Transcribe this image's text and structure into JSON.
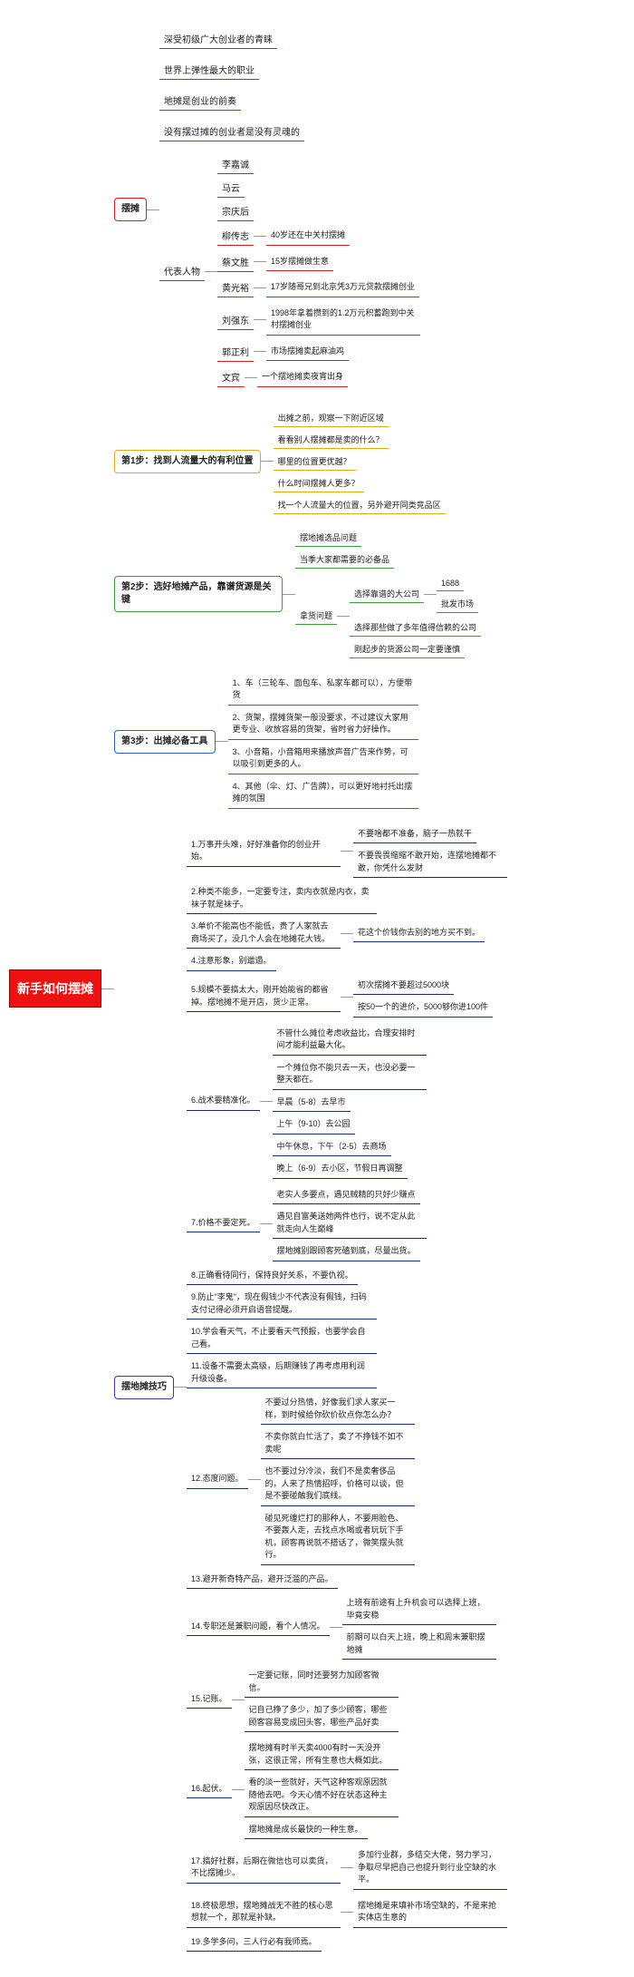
{
  "root": "新手如何摆摊",
  "colors": {
    "red": "#d81e1e",
    "orange": "#e6a817",
    "green": "#3a9e3a",
    "blue": "#2a5fd8",
    "purple": "#4a2fb0",
    "navy": "#1a2a6e"
  },
  "s1": {
    "title": "摆摊",
    "intro": [
      "深受初级广大创业者的青睐",
      "世界上弹性最大的职业",
      "地摊是创业的前奏",
      "没有摆过摊的创业者是没有灵魂的"
    ],
    "repTitle": "代表人物",
    "reps": [
      {
        "n": "李嘉诚"
      },
      {
        "n": "马云"
      },
      {
        "n": "宗庆后"
      },
      {
        "n": "柳传志",
        "d": "40岁还在中关村摆摊"
      },
      {
        "n": "蔡文胜",
        "d": "15岁摆摊做生意"
      },
      {
        "n": "黄光裕",
        "d": "17岁随哥兄到北京凭3万元贷款摆摊创业"
      },
      {
        "n": "刘强东",
        "d": "1998年拿着攒到的1.2万元积蓄跑到中关村摆摊创业"
      },
      {
        "n": "郭正利",
        "d": "市场摆摊卖起麻油鸡"
      },
      {
        "n": "文宾",
        "d": "一个摆地摊卖夜宵出身"
      }
    ]
  },
  "s2": {
    "title": "第1步：找到人流量大的有利位置",
    "items": [
      "出摊之前，观察一下附近区域",
      "看看别人摆摊都是卖的什么？",
      "哪里的位置更优越？",
      "什么时间摆摊人更多？",
      "找一个人流量大的位置，另外避开同类竞品区"
    ]
  },
  "s3": {
    "title": "第2步：选好地摊产品，靠谱货源是关键",
    "a": [
      "摆地摊选品问题",
      "当季大家都需要的必备品"
    ],
    "b": "拿货问题",
    "b1": "选择靠谱的大公司",
    "b1a": "1688",
    "b1b": "批发市场",
    "b2": "选择那些做了多年值得信赖的公司",
    "b3": "刚起步的货源公司一定要谨慎"
  },
  "s4": {
    "title": "第3步：出摊必备工具",
    "items": [
      "1、车（三轮车、面包车、私家车都可以），方便带货",
      "2、货架，摆摊货架一般没要求，不过建议大家用更专业、收放容易的货架，省时省力好操作。",
      "3、小音箱，小音箱用来播放声音广告来作势，可以吸引到更多的人。",
      "4、其他（伞、灯、广告牌），可以更好地衬托出摆摊的氛围"
    ]
  },
  "s5": {
    "title": "摆地摊技巧",
    "t": [
      {
        "n": "1.万事开头难，好好准备你的创业开始。",
        "c": [
          "不要啥都不准备，脑子一热就干",
          "不要畏畏缩缩不敢开始，连摆地摊都不敢，你凭什么发财"
        ]
      },
      {
        "n": "2.种类不能多，一定要专注，卖内衣就是内衣，卖袜子就是袜子。"
      },
      {
        "n": "3.单价不能高也不能低，贵了人家就去商场买了，没几个人会在地摊花大钱。",
        "c": [
          "花这个价钱你去别的地方买不到。"
        ]
      },
      {
        "n": "4.注意形象，别邋遢。"
      },
      {
        "n": "5.规模不要搞太大，刚开始能省的都省掉。摆地摊不是开店，货少正常。",
        "c": [
          "初次摆摊不要超过5000块",
          "按50一个的进价，5000够你进100件"
        ]
      },
      {
        "n": "6.战术要精准化。",
        "c": [
          "不管什么摊位考虑收益比，合理安排时间才能利益最大化。",
          "一个摊位你不能只去一天，也没必要一整天都在。",
          "早晨（5-8）去早市",
          "上午（9-10）去公园",
          "中午休息，下午（2-5）去商场",
          "晚上（6-9）去小区，节假日再调整"
        ]
      },
      {
        "n": "7.价格不要定死。",
        "c": [
          "老实人多要点，遇见贼精的只好少赚点",
          "遇见自富美送她两件也行，说不定从此就走向人生巅峰",
          "摆地摊别跟顾客死磕到底，尽量出货。"
        ]
      },
      {
        "n": "8.正确看待同行，保持良好关系，不要仇视。"
      },
      {
        "n": "9.防止\"李鬼\"，现在假钱少不代表没有假钱，扫码支付记得必须开启语音提醒。"
      },
      {
        "n": "10.学会看天气，不止要看天气预报，也要学会自己看。"
      },
      {
        "n": "11.设备不需要太高级，后期赚钱了再考虑用利润升级设备。"
      },
      {
        "n": "12.态度问题。",
        "c": [
          "不要过分热情，好像我们求人家买一样，到时候给你砍价砍点你怎么办？",
          "不卖你就白忙活了，卖了不挣钱不如不卖呢",
          "也不要过分冷淡，我们不是卖奢侈品的，人来了热情招呼，价格可以谈，但是不要碰触我们底线。",
          "碰见死缠烂打的那种人，不要用脸色、不要轰人走，去找点水喝或者玩玩下手机，顾客再说就不搭话了，微笑摆头就行。"
        ]
      },
      {
        "n": "13.避开新奇特产品，避开泛滥的产品。"
      },
      {
        "n": "14.专职还是兼职问题，看个人情况。",
        "c": [
          "上班有前途有上升机会可以选择上班，毕竟安稳",
          "前期可以白天上班，晚上和周末兼职摆地摊"
        ]
      },
      {
        "n": "15.记账。",
        "c": [
          "一定要记账，同时还要努力加顾客微信。",
          "记自己挣了多少，加了多少顾客，哪些顾客容易变成回头客，哪些产品好卖"
        ]
      },
      {
        "n": "16.起伏。",
        "c": [
          "摆地摊有时半天卖4000有时一天没开张，这很正常，所有生意也大概如此。",
          "看的淡一些就好，天气这种客观原因就随他去吧。今天心情不好在状态这种主观原因尽快改正。",
          "摆地摊是成长最快的一种生意。"
        ]
      },
      {
        "n": "17.搞好社群，后期在微信也可以卖货，不比摆摊少。",
        "c": [
          "多加行业群，多结交大佬，努力学习，争取尽早把自己也提升到行业空缺的水平。"
        ]
      },
      {
        "n": "18.终极思想，摆地摊战无不胜的核心思想就一个，那就是补缺。",
        "c": [
          "摆地摊是来填补市场空缺的，不是来抢实体店生意的"
        ]
      },
      {
        "n": "19.多学多问，三人行必有我师焉。"
      }
    ]
  }
}
